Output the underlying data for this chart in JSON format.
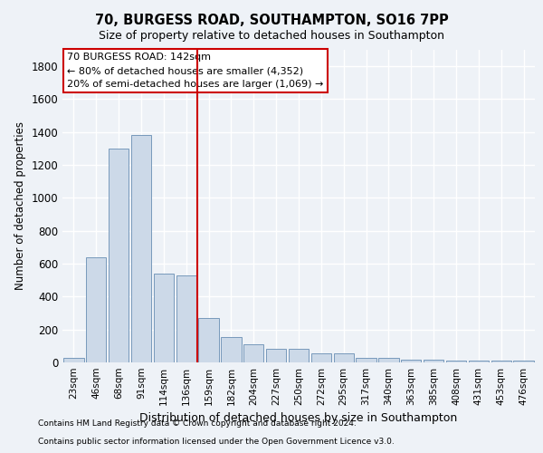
{
  "title1": "70, BURGESS ROAD, SOUTHAMPTON, SO16 7PP",
  "title2": "Size of property relative to detached houses in Southampton",
  "xlabel": "Distribution of detached houses by size in Southampton",
  "ylabel": "Number of detached properties",
  "categories": [
    "23sqm",
    "46sqm",
    "68sqm",
    "91sqm",
    "114sqm",
    "136sqm",
    "159sqm",
    "182sqm",
    "204sqm",
    "227sqm",
    "250sqm",
    "272sqm",
    "295sqm",
    "317sqm",
    "340sqm",
    "363sqm",
    "385sqm",
    "408sqm",
    "431sqm",
    "453sqm",
    "476sqm"
  ],
  "values": [
    30,
    640,
    1300,
    1380,
    540,
    530,
    270,
    155,
    110,
    80,
    80,
    55,
    55,
    30,
    25,
    15,
    15,
    12,
    12,
    12,
    12
  ],
  "bar_color": "#ccd9e8",
  "bar_edge_color": "#7799bb",
  "vline_x": 5.5,
  "vline_color": "#cc0000",
  "annotation_box_text": "70 BURGESS ROAD: 142sqm\n← 80% of detached houses are smaller (4,352)\n20% of semi-detached houses are larger (1,069) →",
  "annotation_box_color": "#cc0000",
  "footer1": "Contains HM Land Registry data © Crown copyright and database right 2024.",
  "footer2": "Contains public sector information licensed under the Open Government Licence v3.0.",
  "ylim": [
    0,
    1900
  ],
  "yticks": [
    0,
    200,
    400,
    600,
    800,
    1000,
    1200,
    1400,
    1600,
    1800
  ],
  "background_color": "#eef2f7",
  "plot_background_color": "#eef2f7",
  "grid_color": "#ffffff"
}
